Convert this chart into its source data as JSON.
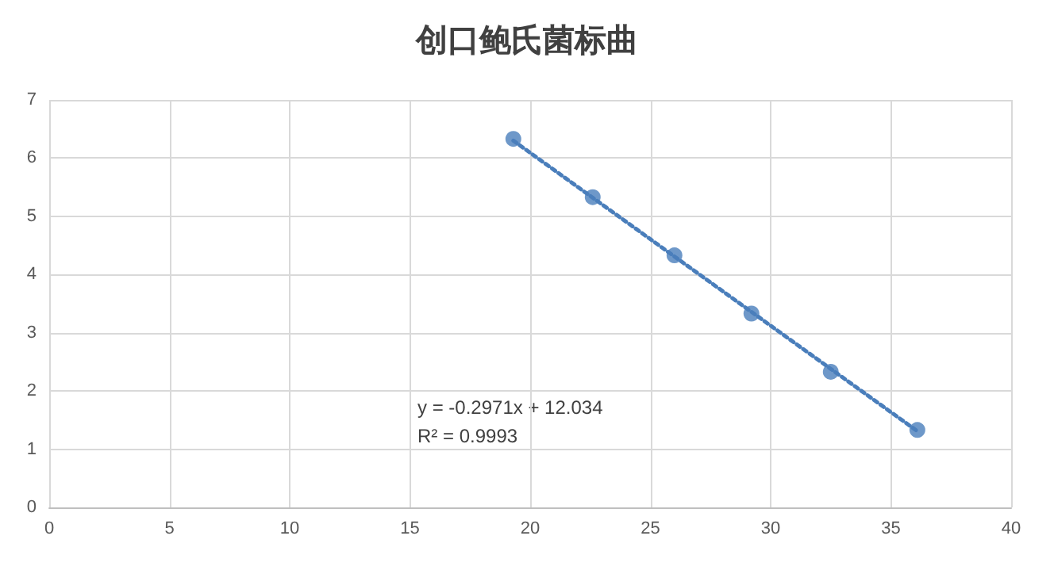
{
  "chart_data": {
    "type": "scatter",
    "title": "创口鲍氏菌标曲",
    "x": [
      19.3,
      22.6,
      26.0,
      29.2,
      32.5,
      36.1
    ],
    "series": [
      {
        "color": "#4a7ebb",
        "values": [
          6.33,
          5.33,
          4.33,
          3.33,
          2.33,
          1.33
        ],
        "marker": "circle"
      },
      {
        "type": "line",
        "color": "#4a7ebb",
        "x": [
          19.3,
          36.1
        ],
        "values": [
          6.3,
          1.31
        ],
        "marker": "none",
        "line_style": "dotted"
      }
    ],
    "xlim": [
      0,
      40
    ],
    "xticks": [
      0,
      5,
      10,
      15,
      20,
      25,
      30,
      35,
      40
    ],
    "ylim": [
      0,
      7
    ],
    "yticks": [
      0,
      1,
      2,
      3,
      4,
      5,
      6,
      7
    ],
    "grid": true,
    "annotations": [
      "y = -0.2971x + 12.034",
      "R² = 0.9993"
    ]
  }
}
